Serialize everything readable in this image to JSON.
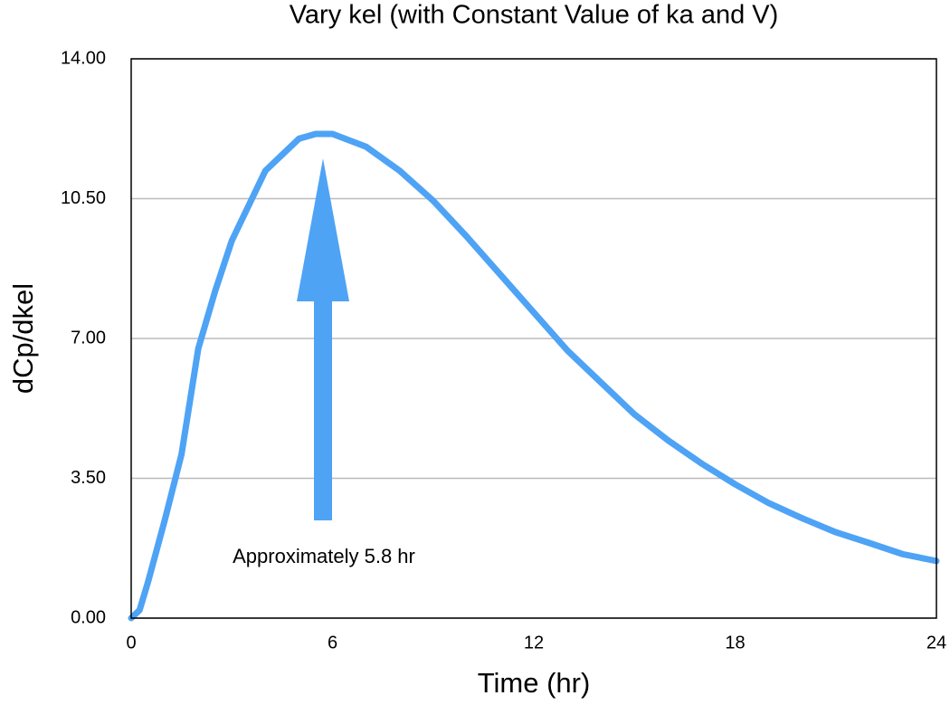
{
  "chart_data": {
    "type": "line",
    "title": "Vary kel (with Constant Value of ka and V)",
    "x_label": "Time (hr)",
    "y_label": "dCp/dkel",
    "annotation": "Approximately 5.8 hr",
    "x": [
      0,
      0.25,
      0.5,
      1,
      1.5,
      2,
      2.5,
      3,
      4,
      5,
      5.5,
      6,
      7,
      8,
      9,
      10,
      11,
      12,
      13,
      14,
      15,
      16,
      17,
      18,
      19,
      20,
      21,
      22,
      23,
      24
    ],
    "series": [
      {
        "name": "dCp/dkel",
        "color": "#4ea3f5",
        "values": [
          0,
          0.2,
          0.9,
          2.45,
          4.1,
          6.75,
          8.18,
          9.45,
          11.2,
          12.0,
          12.12,
          12.12,
          11.8,
          11.2,
          10.45,
          9.55,
          8.6,
          7.65,
          6.7,
          5.9,
          5.1,
          4.45,
          3.87,
          3.35,
          2.88,
          2.5,
          2.15,
          1.88,
          1.6,
          1.43
        ]
      }
    ],
    "xlim": [
      0,
      24
    ],
    "xticks": [
      0,
      6,
      12,
      18,
      24
    ],
    "ylim": [
      0,
      14
    ],
    "yticks": [
      {
        "value": 0,
        "label": "0.00"
      },
      {
        "value": 3.5,
        "label": "3.50"
      },
      {
        "value": 7,
        "label": "7.00"
      },
      {
        "value": 10.5,
        "label": "10.50"
      },
      {
        "value": 14,
        "label": "14.00"
      }
    ],
    "grid": true
  }
}
